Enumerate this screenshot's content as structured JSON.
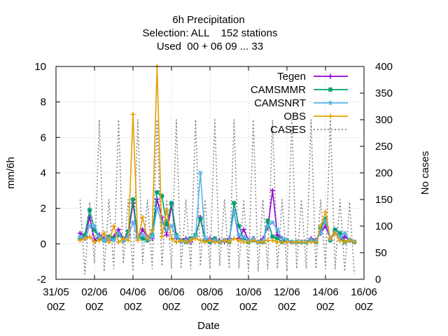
{
  "chart_data": {
    "type": "line",
    "title": [
      "6h Precipitation",
      "Selection: ALL    152 stations",
      "Used  00 + 06 09 ... 33"
    ],
    "xlabel": "Date",
    "ylabel": "mm/6h",
    "y2label": "No cases",
    "ylim": [
      -2,
      10
    ],
    "y2lim": [
      0,
      400
    ],
    "xlim_days": [
      0,
      16
    ],
    "x_ticks": [
      {
        "day": 0,
        "label1": "31/05",
        "label2": "00Z"
      },
      {
        "day": 2,
        "label1": "02/06",
        "label2": "00Z"
      },
      {
        "day": 4,
        "label1": "04/06",
        "label2": "00Z"
      },
      {
        "day": 6,
        "label1": "06/06",
        "label2": "00Z"
      },
      {
        "day": 8,
        "label1": "08/06",
        "label2": "00Z"
      },
      {
        "day": 10,
        "label1": "10/06",
        "label2": "00Z"
      },
      {
        "day": 12,
        "label1": "12/06",
        "label2": "00Z"
      },
      {
        "day": 14,
        "label1": "14/06",
        "label2": "00Z"
      },
      {
        "day": 16,
        "label1": "16/06",
        "label2": "00Z"
      }
    ],
    "y_ticks": [
      -2,
      0,
      2,
      4,
      6,
      8,
      10
    ],
    "y2_ticks": [
      0,
      50,
      100,
      150,
      200,
      250,
      300,
      350,
      400
    ],
    "grid": true,
    "legend_position": "top-right",
    "series": [
      {
        "name": "Tegen",
        "color": "#9400d3",
        "axis": "y1",
        "marker": "plus",
        "x": [
          1.25,
          1.5,
          1.75,
          2,
          2.25,
          2.5,
          2.75,
          3,
          3.25,
          3.5,
          3.75,
          4,
          4.25,
          4.5,
          4.75,
          5,
          5.25,
          5.5,
          5.75,
          6,
          6.25,
          6.5,
          6.75,
          7,
          7.25,
          7.5,
          7.75,
          8,
          8.25,
          8.5,
          8.75,
          9,
          9.25,
          9.5,
          9.75,
          10,
          10.25,
          10.5,
          10.75,
          11,
          11.25,
          11.5,
          11.75,
          12,
          12.25,
          12.5,
          12.75,
          13,
          13.25,
          13.5,
          13.75,
          14,
          14.25,
          14.5,
          14.75,
          15,
          15.25,
          15.5
        ],
        "y": [
          0.6,
          0.4,
          1.5,
          0.2,
          0.5,
          0.3,
          0.2,
          0.4,
          0.8,
          0.3,
          0.5,
          2.3,
          0.3,
          0.8,
          0.4,
          0.3,
          2.5,
          1.5,
          0.5,
          2.2,
          0.3,
          0.2,
          0.3,
          0.1,
          0.4,
          1.5,
          0.2,
          0.3,
          0.1,
          0.2,
          0.1,
          0.3,
          1.8,
          0.3,
          0.8,
          0.2,
          0.3,
          0.1,
          0.3,
          0.9,
          3.0,
          0.5,
          0.3,
          0.1,
          0.1,
          0.1,
          0.1,
          0.1,
          0.3,
          0.2,
          0.6,
          1.0,
          0.3,
          0.7,
          0.2,
          0.4,
          0.2,
          0.1
        ]
      },
      {
        "name": "CAMSMMR",
        "color": "#009e73",
        "axis": "y1",
        "marker": "star",
        "x": [
          1.25,
          1.5,
          1.75,
          2,
          2.25,
          2.5,
          2.75,
          3,
          3.25,
          3.5,
          3.75,
          4,
          4.25,
          4.5,
          4.75,
          5,
          5.25,
          5.5,
          5.75,
          6,
          6.25,
          6.5,
          6.75,
          7,
          7.25,
          7.5,
          7.75,
          8,
          8.25,
          8.5,
          8.75,
          9,
          9.25,
          9.5,
          9.75,
          10,
          10.25,
          10.5,
          10.75,
          11,
          11.25,
          11.5,
          11.75,
          12,
          12.25,
          12.5,
          12.75,
          13,
          13.25,
          13.5,
          13.75,
          14,
          14.25,
          14.5,
          14.75,
          15,
          15.25,
          15.5
        ],
        "y": [
          0.3,
          0.5,
          1.9,
          0.8,
          0.3,
          0.2,
          0.4,
          0.3,
          0.5,
          0.2,
          0.7,
          2.5,
          0.4,
          0.3,
          0.2,
          0.5,
          2.9,
          2.7,
          1.1,
          2.3,
          0.5,
          0.2,
          0.1,
          0.3,
          0.5,
          1.4,
          0.2,
          0.1,
          0.3,
          0.1,
          0.2,
          0.1,
          2.3,
          1.0,
          0.3,
          0.1,
          0.2,
          0.1,
          0.1,
          1.3,
          0.4,
          0.3,
          0.1,
          0.2,
          0.1,
          0.1,
          0.1,
          0.1,
          0.2,
          0.1,
          0.9,
          1.4,
          0.2,
          0.8,
          0.6,
          0.1,
          0.2,
          0.1
        ]
      },
      {
        "name": "CAMSNRT",
        "color": "#56b4e9",
        "axis": "y1",
        "marker": "asterisk",
        "x": [
          1.25,
          1.5,
          1.75,
          2,
          2.25,
          2.5,
          2.75,
          3,
          3.25,
          3.5,
          3.75,
          4,
          4.25,
          4.5,
          4.75,
          5,
          5.25,
          5.5,
          5.75,
          6,
          6.25,
          6.5,
          6.75,
          7,
          7.25,
          7.5,
          7.75,
          8,
          8.25,
          8.5,
          8.75,
          9,
          9.25,
          9.5,
          9.75,
          10,
          10.25,
          10.5,
          10.75,
          11,
          11.25,
          11.5,
          11.75,
          12,
          12.25,
          12.5,
          12.75,
          13,
          13.25,
          13.5,
          13.75,
          14,
          14.25,
          14.5,
          14.75,
          15,
          15.25,
          15.5
        ],
        "y": [
          0.4,
          0.3,
          1.0,
          1.0,
          0.4,
          0.2,
          0.3,
          0.2,
          0.6,
          0.2,
          0.4,
          1.2,
          0.3,
          0.5,
          0.3,
          0.4,
          2.0,
          1.2,
          0.8,
          1.0,
          0.4,
          0.1,
          0.2,
          0.2,
          0.4,
          4.0,
          0.3,
          0.2,
          0.2,
          0.1,
          0.2,
          0.2,
          1.8,
          0.5,
          0.4,
          0.2,
          0.3,
          0.1,
          0.2,
          1.0,
          1.2,
          0.8,
          0.3,
          0.2,
          0.1,
          0.1,
          0.1,
          0.1,
          0.2,
          0.2,
          0.6,
          1.3,
          0.3,
          0.6,
          0.4,
          0.6,
          0.2,
          0.1
        ]
      },
      {
        "name": "OBS",
        "color": "#e69f00",
        "axis": "y1",
        "marker": "plus",
        "x": [
          1.25,
          1.5,
          1.75,
          2,
          2.25,
          2.5,
          2.75,
          3,
          3.25,
          3.5,
          3.75,
          4,
          4.25,
          4.5,
          4.75,
          5,
          5.25,
          5.5,
          5.75,
          6,
          6.25,
          6.5,
          6.75,
          7,
          7.25,
          7.5,
          7.75,
          8,
          8.25,
          8.5,
          8.75,
          9,
          9.25,
          9.5,
          9.75,
          10,
          10.25,
          10.5,
          10.75,
          11,
          11.25,
          11.5,
          11.75,
          12,
          12.25,
          12.5,
          12.75,
          13,
          13.25,
          13.5,
          13.75,
          14,
          14.25,
          14.5,
          14.75,
          15,
          15.25,
          15.5
        ],
        "y": [
          0.2,
          0.3,
          0.4,
          0.1,
          0.2,
          0.6,
          0.1,
          1.0,
          0.1,
          0.3,
          0.2,
          7.3,
          0.2,
          1.5,
          0.3,
          0.8,
          10.0,
          0.4,
          1.9,
          0.3,
          0.1,
          0.2,
          0.1,
          0.2,
          0.3,
          0.2,
          0.1,
          0.2,
          0.1,
          0.1,
          0.2,
          0.1,
          0.3,
          0.2,
          0.1,
          0.1,
          0.2,
          0.1,
          0.1,
          0.2,
          0.2,
          0.1,
          0.1,
          0.1,
          0.1,
          0.1,
          0.1,
          0.1,
          0.1,
          0.1,
          1.0,
          1.8,
          0.3,
          0.6,
          0.2,
          0.1,
          0.2,
          0.1
        ]
      },
      {
        "name": "CASES",
        "color": "#808080",
        "axis": "y2",
        "marker": "none",
        "x": [
          1.25,
          1.5,
          1.75,
          2,
          2.25,
          2.5,
          2.75,
          3,
          3.25,
          3.5,
          3.75,
          4,
          4.25,
          4.5,
          4.75,
          5,
          5.25,
          5.5,
          5.75,
          6,
          6.25,
          6.5,
          6.75,
          7,
          7.25,
          7.5,
          7.75,
          8,
          8.25,
          8.5,
          8.75,
          9,
          9.25,
          9.5,
          9.75,
          10,
          10.25,
          10.5,
          10.75,
          11,
          11.25,
          11.5,
          11.75,
          12,
          12.25,
          12.5,
          12.75,
          13,
          13.25,
          13.5,
          13.75,
          14,
          14.25,
          14.5,
          14.75,
          15,
          15.25,
          15.5
        ],
        "y": [
          150,
          10,
          145,
          30,
          300,
          15,
          150,
          20,
          300,
          30,
          150,
          15,
          300,
          30,
          150,
          20,
          300,
          25,
          150,
          20,
          300,
          20,
          150,
          20,
          300,
          25,
          150,
          20,
          300,
          25,
          150,
          20,
          300,
          20,
          150,
          15,
          300,
          15,
          150,
          20,
          300,
          20,
          150,
          15,
          300,
          20,
          150,
          20,
          300,
          20,
          150,
          20,
          300,
          20,
          150,
          15,
          145,
          10
        ]
      }
    ]
  }
}
